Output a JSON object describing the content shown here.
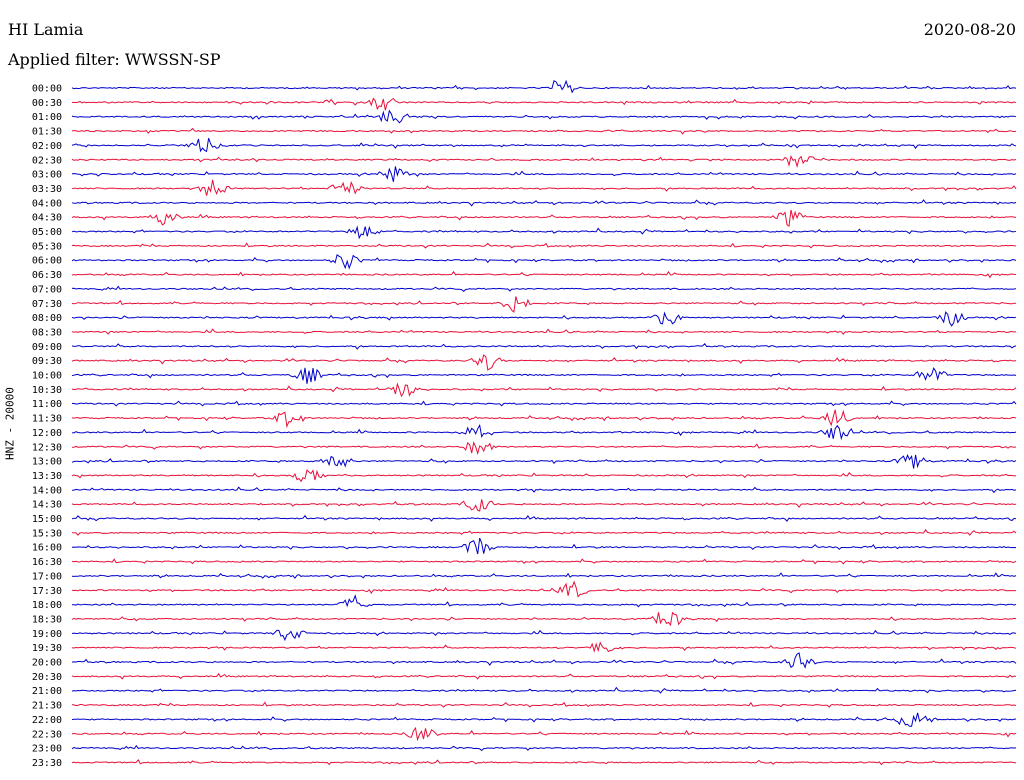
{
  "header": {
    "station": "HI Lamia",
    "date": "2020-08-20",
    "filter_text": "Applied filter: WWSSN-SP"
  },
  "axis": {
    "side_label": "HNZ - 20000"
  },
  "colors": {
    "trace_a": "#0000cc",
    "trace_b": "#e8103a",
    "background": "#ffffff",
    "text": "#000000"
  },
  "rows": [
    "00:00",
    "00:30",
    "01:00",
    "01:30",
    "02:00",
    "02:30",
    "03:00",
    "03:30",
    "04:00",
    "04:30",
    "05:00",
    "05:30",
    "06:00",
    "06:30",
    "07:00",
    "07:30",
    "08:00",
    "08:30",
    "09:00",
    "09:30",
    "10:00",
    "10:30",
    "11:00",
    "11:30",
    "12:00",
    "12:30",
    "13:00",
    "13:30",
    "14:00",
    "14:30",
    "15:00",
    "15:30",
    "16:00",
    "16:30",
    "17:00",
    "17:30",
    "18:00",
    "18:30",
    "19:00",
    "19:30",
    "20:00",
    "20:30",
    "21:00",
    "21:30",
    "22:00",
    "22:30",
    "23:00",
    "23:30"
  ],
  "events": [
    {
      "row": "00:00",
      "pos": 0.52
    },
    {
      "row": "00:30",
      "pos": 0.33
    },
    {
      "row": "01:00",
      "pos": 0.34
    },
    {
      "row": "02:00",
      "pos": 0.14
    },
    {
      "row": "02:30",
      "pos": 0.77
    },
    {
      "row": "03:00",
      "pos": 0.34
    },
    {
      "row": "03:30",
      "pos": 0.15
    },
    {
      "row": "03:30",
      "pos": 0.29
    },
    {
      "row": "04:30",
      "pos": 0.76
    },
    {
      "row": "04:30",
      "pos": 0.1
    },
    {
      "row": "05:00",
      "pos": 0.31
    },
    {
      "row": "06:00",
      "pos": 0.29
    },
    {
      "row": "07:30",
      "pos": 0.47
    },
    {
      "row": "08:00",
      "pos": 0.63
    },
    {
      "row": "08:00",
      "pos": 0.93
    },
    {
      "row": "09:30",
      "pos": 0.44
    },
    {
      "row": "10:00",
      "pos": 0.25
    },
    {
      "row": "10:00",
      "pos": 0.91
    },
    {
      "row": "10:30",
      "pos": 0.35
    },
    {
      "row": "11:30",
      "pos": 0.23
    },
    {
      "row": "11:30",
      "pos": 0.81
    },
    {
      "row": "12:00",
      "pos": 0.43
    },
    {
      "row": "12:00",
      "pos": 0.81
    },
    {
      "row": "12:30",
      "pos": 0.43
    },
    {
      "row": "13:00",
      "pos": 0.28
    },
    {
      "row": "13:00",
      "pos": 0.89
    },
    {
      "row": "13:30",
      "pos": 0.25
    },
    {
      "row": "14:30",
      "pos": 0.43
    },
    {
      "row": "16:00",
      "pos": 0.43
    },
    {
      "row": "17:30",
      "pos": 0.53
    },
    {
      "row": "18:00",
      "pos": 0.3
    },
    {
      "row": "18:30",
      "pos": 0.63
    },
    {
      "row": "19:00",
      "pos": 0.23
    },
    {
      "row": "19:30",
      "pos": 0.56
    },
    {
      "row": "20:00",
      "pos": 0.77
    },
    {
      "row": "22:00",
      "pos": 0.89
    },
    {
      "row": "22:30",
      "pos": 0.37
    }
  ]
}
